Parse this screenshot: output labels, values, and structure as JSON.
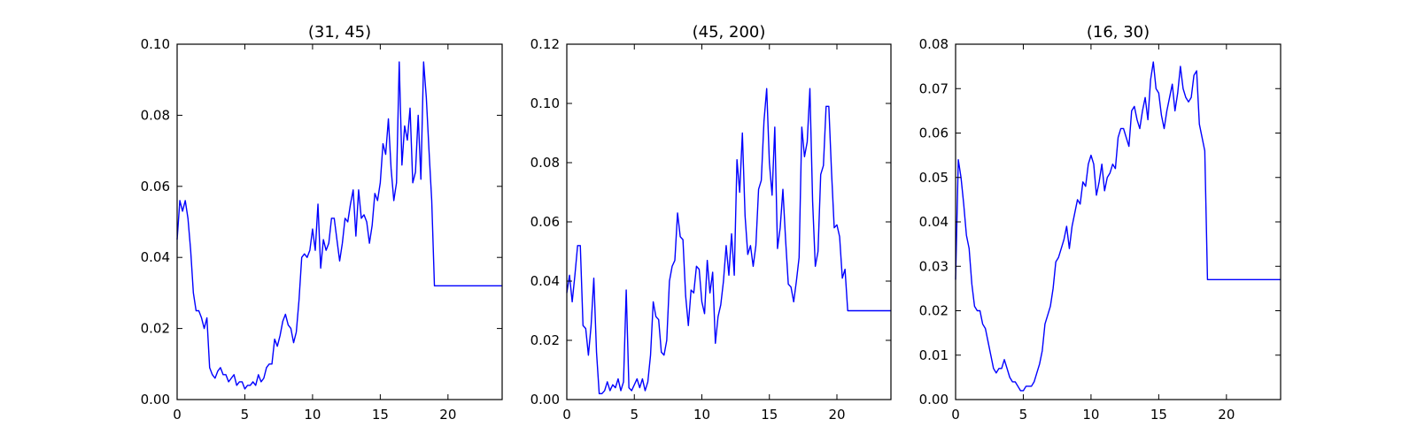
{
  "chart_data": [
    {
      "type": "line",
      "title": "(31, 45)",
      "xlabel": "",
      "ylabel": "",
      "xlim": [
        0,
        24
      ],
      "ylim": [
        0,
        0.1
      ],
      "xticks": [
        0,
        5,
        10,
        15,
        20
      ],
      "yticks": [
        0.0,
        0.02,
        0.04,
        0.06,
        0.08,
        0.1
      ],
      "ytick_labels": [
        "0.00",
        "0.02",
        "0.04",
        "0.06",
        "0.08",
        "0.10"
      ],
      "grid": false,
      "line_color": "#0000ff",
      "series": [
        {
          "x": [
            0,
            0.2,
            0.4,
            0.6,
            0.8,
            1.0,
            1.2,
            1.4,
            1.6,
            1.8,
            2.0,
            2.2,
            2.4,
            2.6,
            2.8,
            3.0,
            3.2,
            3.4,
            3.6,
            3.8,
            4.0,
            4.2,
            4.4,
            4.6,
            4.8,
            5.0,
            5.2,
            5.4,
            5.6,
            5.8,
            6.0,
            6.2,
            6.4,
            6.6,
            6.8,
            7.0,
            7.2,
            7.4,
            7.6,
            7.8,
            8.0,
            8.2,
            8.4,
            8.6,
            8.8,
            9.0,
            9.2,
            9.4,
            9.6,
            9.8,
            10.0,
            10.2,
            10.4,
            10.6,
            10.8,
            11.0,
            11.2,
            11.4,
            11.6,
            11.8,
            12.0,
            12.2,
            12.4,
            12.6,
            12.8,
            13.0,
            13.2,
            13.4,
            13.6,
            13.8,
            14.0,
            14.2,
            14.4,
            14.6,
            14.8,
            15.0,
            15.2,
            15.4,
            15.6,
            15.8,
            16.0,
            16.2,
            16.4,
            16.6,
            16.8,
            17.0,
            17.2,
            17.4,
            17.6,
            17.8,
            18.0,
            18.2,
            18.4,
            18.6,
            18.8,
            19.0,
            19.2,
            19.4,
            19.6,
            19.8,
            20.0,
            20.2,
            20.4,
            20.6,
            20.8,
            21.0,
            21.2,
            21.4,
            21.6,
            21.8,
            22.0,
            22.2,
            22.4,
            22.6,
            22.8,
            23.0,
            23.2,
            23.4,
            23.6,
            23.8,
            24.0
          ],
          "y": [
            0.045,
            0.056,
            0.053,
            0.056,
            0.051,
            0.042,
            0.03,
            0.025,
            0.025,
            0.023,
            0.02,
            0.023,
            0.009,
            0.007,
            0.006,
            0.008,
            0.009,
            0.007,
            0.007,
            0.005,
            0.006,
            0.007,
            0.004,
            0.005,
            0.005,
            0.003,
            0.004,
            0.004,
            0.005,
            0.004,
            0.007,
            0.005,
            0.006,
            0.009,
            0.01,
            0.01,
            0.017,
            0.015,
            0.018,
            0.022,
            0.024,
            0.021,
            0.02,
            0.016,
            0.019,
            0.028,
            0.04,
            0.041,
            0.04,
            0.042,
            0.048,
            0.042,
            0.055,
            0.037,
            0.045,
            0.042,
            0.044,
            0.051,
            0.051,
            0.045,
            0.039,
            0.044,
            0.051,
            0.05,
            0.055,
            0.059,
            0.046,
            0.059,
            0.051,
            0.052,
            0.05,
            0.044,
            0.049,
            0.058,
            0.056,
            0.061,
            0.072,
            0.069,
            0.079,
            0.065,
            0.056,
            0.061,
            0.095,
            0.066,
            0.077,
            0.073,
            0.082,
            0.061,
            0.064,
            0.08,
            0.062,
            0.095,
            0.085,
            0.07,
            0.056,
            0.032,
            0.032,
            0.032,
            0.032,
            0.032,
            0.032,
            0.032,
            0.032,
            0.032,
            0.032,
            0.032,
            0.032,
            0.032,
            0.032,
            0.032,
            0.032,
            0.032,
            0.032,
            0.032,
            0.032,
            0.032,
            0.032,
            0.032,
            0.032,
            0.032,
            0.032
          ]
        }
      ]
    },
    {
      "type": "line",
      "title": "(45, 200)",
      "xlabel": "",
      "ylabel": "",
      "xlim": [
        0,
        24
      ],
      "ylim": [
        0,
        0.12
      ],
      "xticks": [
        0,
        5,
        10,
        15,
        20
      ],
      "yticks": [
        0.0,
        0.02,
        0.04,
        0.06,
        0.08,
        0.1,
        0.12
      ],
      "ytick_labels": [
        "0.00",
        "0.02",
        "0.04",
        "0.06",
        "0.08",
        "0.10",
        "0.12"
      ],
      "grid": false,
      "line_color": "#0000ff",
      "series": [
        {
          "x": [
            0,
            0.2,
            0.4,
            0.6,
            0.8,
            1.0,
            1.2,
            1.4,
            1.6,
            1.8,
            2.0,
            2.2,
            2.4,
            2.6,
            2.8,
            3.0,
            3.2,
            3.4,
            3.6,
            3.8,
            4.0,
            4.2,
            4.4,
            4.6,
            4.8,
            5.0,
            5.2,
            5.4,
            5.6,
            5.8,
            6.0,
            6.2,
            6.4,
            6.6,
            6.8,
            7.0,
            7.2,
            7.4,
            7.6,
            7.8,
            8.0,
            8.2,
            8.4,
            8.6,
            8.8,
            9.0,
            9.2,
            9.4,
            9.6,
            9.8,
            10.0,
            10.2,
            10.4,
            10.6,
            10.8,
            11.0,
            11.2,
            11.4,
            11.6,
            11.8,
            12.0,
            12.2,
            12.4,
            12.6,
            12.8,
            13.0,
            13.2,
            13.4,
            13.6,
            13.8,
            14.0,
            14.2,
            14.4,
            14.6,
            14.8,
            15.0,
            15.2,
            15.4,
            15.6,
            15.8,
            16.0,
            16.2,
            16.4,
            16.6,
            16.8,
            17.0,
            17.2,
            17.4,
            17.6,
            17.8,
            18.0,
            18.2,
            18.4,
            18.6,
            18.8,
            19.0,
            19.2,
            19.4,
            19.6,
            19.8,
            20.0,
            20.2,
            20.4,
            20.6,
            20.8,
            21.0,
            21.2,
            21.4,
            21.6,
            21.8,
            22.0,
            22.2,
            22.4,
            22.6,
            22.8,
            23.0,
            23.2,
            23.4,
            23.6,
            23.8,
            24.0
          ],
          "y": [
            0.036,
            0.042,
            0.033,
            0.042,
            0.052,
            0.052,
            0.025,
            0.024,
            0.015,
            0.025,
            0.041,
            0.016,
            0.002,
            0.002,
            0.003,
            0.006,
            0.003,
            0.005,
            0.004,
            0.007,
            0.003,
            0.006,
            0.037,
            0.004,
            0.003,
            0.005,
            0.007,
            0.004,
            0.007,
            0.003,
            0.006,
            0.015,
            0.033,
            0.028,
            0.027,
            0.016,
            0.015,
            0.02,
            0.04,
            0.045,
            0.047,
            0.063,
            0.055,
            0.054,
            0.035,
            0.025,
            0.037,
            0.036,
            0.045,
            0.044,
            0.033,
            0.029,
            0.047,
            0.036,
            0.043,
            0.019,
            0.028,
            0.032,
            0.04,
            0.052,
            0.042,
            0.056,
            0.042,
            0.081,
            0.07,
            0.09,
            0.062,
            0.049,
            0.052,
            0.045,
            0.052,
            0.071,
            0.074,
            0.094,
            0.105,
            0.08,
            0.069,
            0.092,
            0.051,
            0.058,
            0.071,
            0.054,
            0.039,
            0.038,
            0.033,
            0.04,
            0.048,
            0.092,
            0.082,
            0.087,
            0.105,
            0.067,
            0.045,
            0.05,
            0.076,
            0.079,
            0.099,
            0.099,
            0.077,
            0.058,
            0.059,
            0.055,
            0.041,
            0.044,
            0.03,
            0.03,
            0.03,
            0.03,
            0.03,
            0.03,
            0.03,
            0.03,
            0.03,
            0.03,
            0.03,
            0.03,
            0.03,
            0.03,
            0.03,
            0.03,
            0.03
          ]
        }
      ]
    },
    {
      "type": "line",
      "title": "(16, 30)",
      "xlabel": "",
      "ylabel": "",
      "xlim": [
        0,
        24
      ],
      "ylim": [
        0,
        0.08
      ],
      "xticks": [
        0,
        5,
        10,
        15,
        20
      ],
      "yticks": [
        0.0,
        0.01,
        0.02,
        0.03,
        0.04,
        0.05,
        0.06,
        0.07,
        0.08
      ],
      "ytick_labels": [
        "0.00",
        "0.01",
        "0.02",
        "0.03",
        "0.04",
        "0.05",
        "0.06",
        "0.07",
        "0.08"
      ],
      "grid": false,
      "line_color": "#0000ff",
      "series": [
        {
          "x": [
            0,
            0.2,
            0.4,
            0.6,
            0.8,
            1.0,
            1.2,
            1.4,
            1.6,
            1.8,
            2.0,
            2.2,
            2.4,
            2.6,
            2.8,
            3.0,
            3.2,
            3.4,
            3.6,
            3.8,
            4.0,
            4.2,
            4.4,
            4.6,
            4.8,
            5.0,
            5.2,
            5.4,
            5.6,
            5.8,
            6.0,
            6.2,
            6.4,
            6.6,
            6.8,
            7.0,
            7.2,
            7.4,
            7.6,
            7.8,
            8.0,
            8.2,
            8.4,
            8.6,
            8.8,
            9.0,
            9.2,
            9.4,
            9.6,
            9.8,
            10.0,
            10.2,
            10.4,
            10.6,
            10.8,
            11.0,
            11.2,
            11.4,
            11.6,
            11.8,
            12.0,
            12.2,
            12.4,
            12.6,
            12.8,
            13.0,
            13.2,
            13.4,
            13.6,
            13.8,
            14.0,
            14.2,
            14.4,
            14.6,
            14.8,
            15.0,
            15.2,
            15.4,
            15.6,
            15.8,
            16.0,
            16.2,
            16.4,
            16.6,
            16.8,
            17.0,
            17.2,
            17.4,
            17.6,
            17.8,
            18.0,
            18.2,
            18.4,
            18.6,
            18.8,
            19.0,
            19.2,
            19.4,
            19.6,
            19.8,
            20.0,
            20.2,
            20.4,
            20.6,
            20.8,
            21.0,
            21.2,
            21.4,
            21.6,
            21.8,
            22.0,
            22.2,
            22.4,
            22.6,
            22.8,
            23.0,
            23.2,
            23.4,
            23.6,
            23.8,
            24.0
          ],
          "y": [
            0.027,
            0.054,
            0.05,
            0.044,
            0.037,
            0.034,
            0.026,
            0.021,
            0.02,
            0.02,
            0.017,
            0.016,
            0.013,
            0.01,
            0.007,
            0.006,
            0.007,
            0.007,
            0.009,
            0.007,
            0.005,
            0.004,
            0.004,
            0.003,
            0.002,
            0.002,
            0.003,
            0.003,
            0.003,
            0.004,
            0.006,
            0.008,
            0.011,
            0.017,
            0.019,
            0.021,
            0.025,
            0.031,
            0.032,
            0.034,
            0.036,
            0.039,
            0.034,
            0.039,
            0.042,
            0.045,
            0.044,
            0.049,
            0.048,
            0.053,
            0.055,
            0.053,
            0.046,
            0.049,
            0.053,
            0.047,
            0.05,
            0.051,
            0.053,
            0.052,
            0.059,
            0.061,
            0.061,
            0.059,
            0.057,
            0.065,
            0.066,
            0.063,
            0.061,
            0.065,
            0.068,
            0.063,
            0.072,
            0.076,
            0.07,
            0.069,
            0.064,
            0.061,
            0.065,
            0.068,
            0.071,
            0.065,
            0.069,
            0.075,
            0.07,
            0.068,
            0.067,
            0.068,
            0.073,
            0.074,
            0.062,
            0.059,
            0.056,
            0.027,
            0.027,
            0.027,
            0.027,
            0.027,
            0.027,
            0.027,
            0.027,
            0.027,
            0.027,
            0.027,
            0.027,
            0.027,
            0.027,
            0.027,
            0.027,
            0.027,
            0.027,
            0.027,
            0.027,
            0.027,
            0.027,
            0.027,
            0.027,
            0.027,
            0.027,
            0.027,
            0.027
          ]
        }
      ]
    }
  ]
}
